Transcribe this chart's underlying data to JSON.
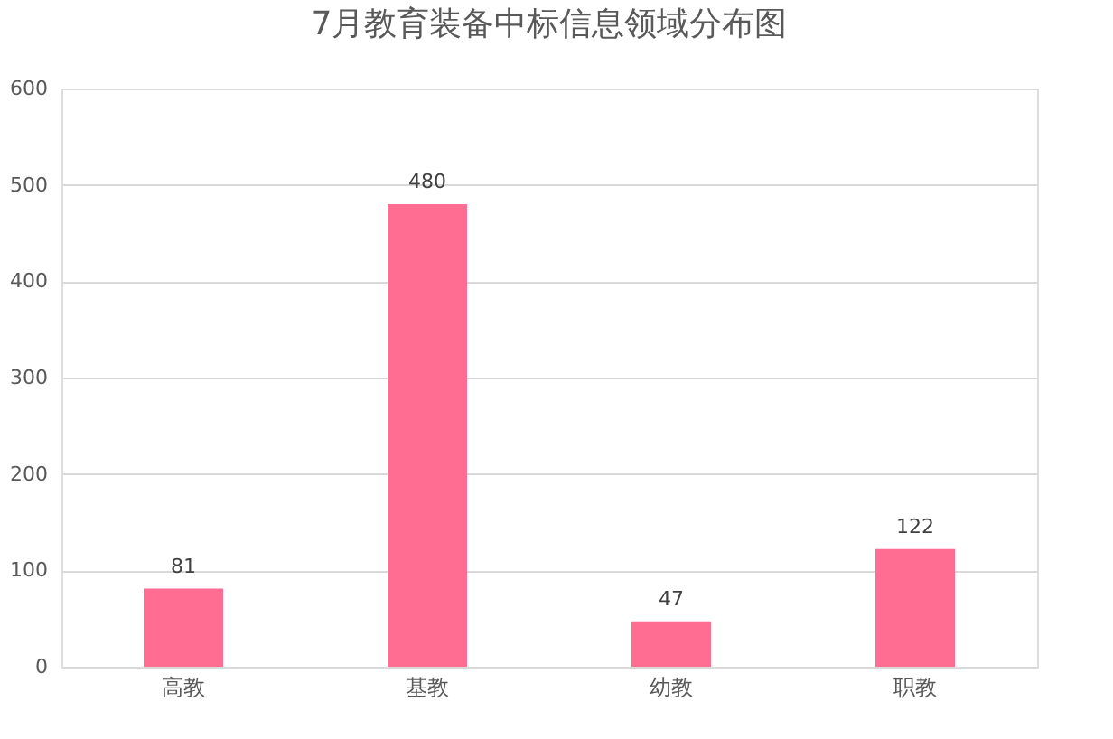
{
  "chart_data": {
    "type": "bar",
    "title": "7月教育装备中标信息领域分布图",
    "categories": [
      "高教",
      "基教",
      "幼教",
      "职教"
    ],
    "values": [
      81,
      480,
      47,
      122
    ],
    "color": "#ff6d93",
    "ylim": [
      0,
      600
    ],
    "yticks": [
      0,
      100,
      200,
      300,
      400,
      500,
      600
    ],
    "grid": "y",
    "data_labels": true
  }
}
